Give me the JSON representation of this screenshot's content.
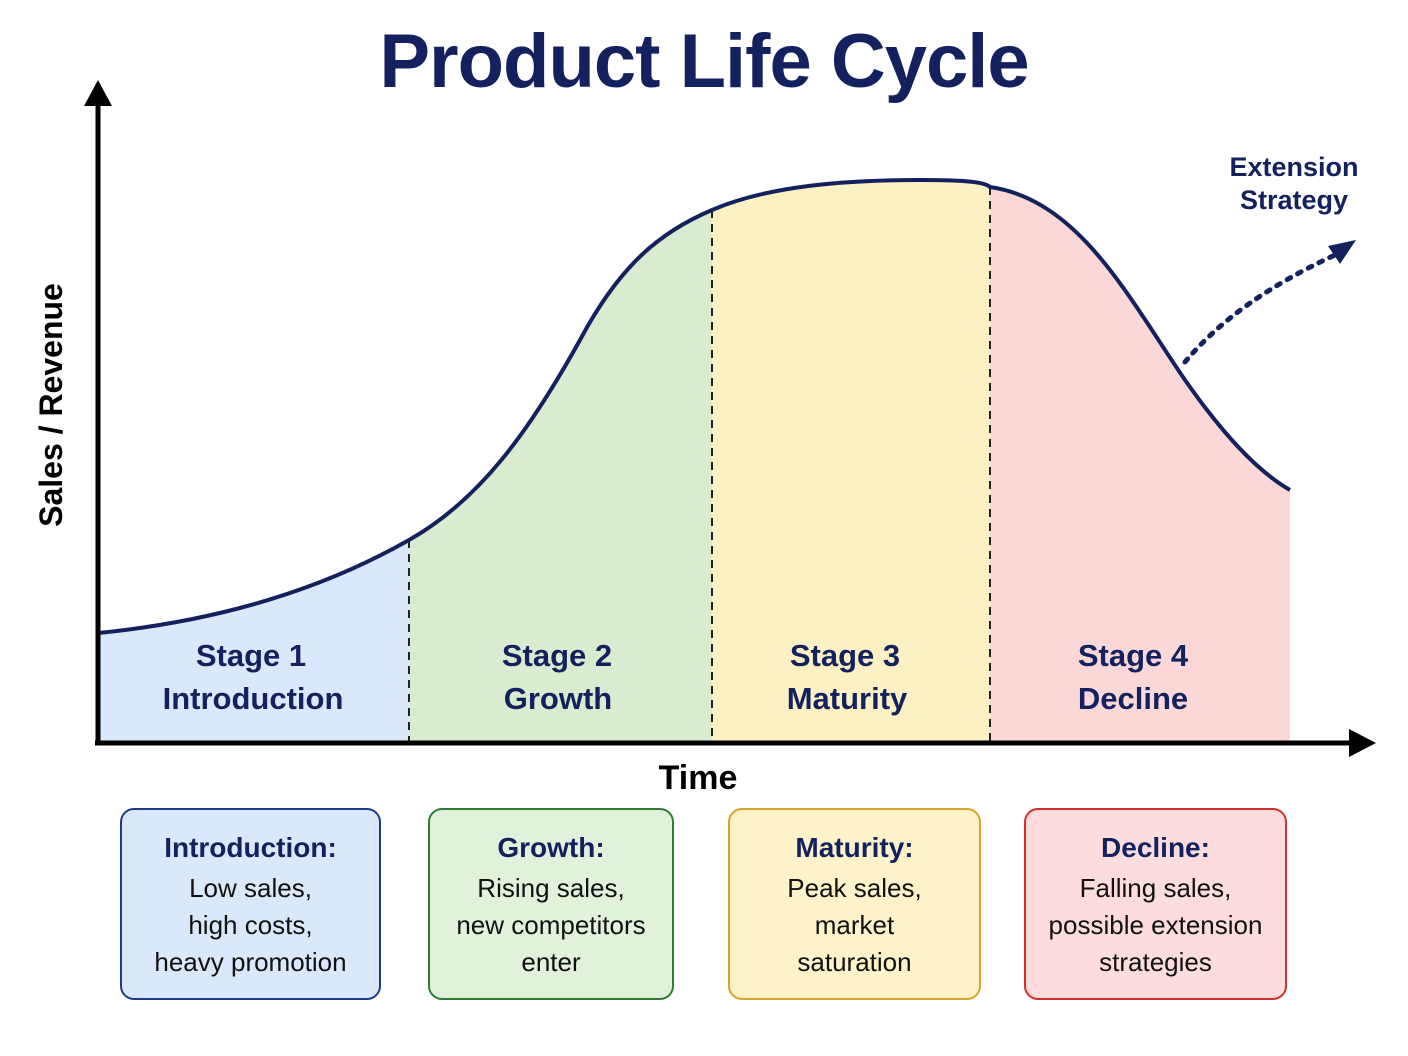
{
  "title": "Product Life Cycle",
  "y_axis_label": "Sales / Revenue",
  "x_axis_label": "Time",
  "stages": [
    {
      "line1": "Stage 1",
      "line2": "Introduction",
      "fill": "#dae8fb"
    },
    {
      "line1": "Stage 2",
      "line2": "Growth",
      "fill": "#d9ecd0"
    },
    {
      "line1": "Stage 3",
      "line2": "Maturity",
      "fill": "#fdf0c3"
    },
    {
      "line1": "Stage 4",
      "line2": "Decline",
      "fill": "#fcd7d7"
    }
  ],
  "extension": {
    "line1": "Extension",
    "line2": "Strategy"
  },
  "info_boxes": [
    {
      "title": "Introduction:",
      "lines": [
        "Low sales,",
        "high costs,",
        "heavy promotion"
      ],
      "border": "#1e3a8a",
      "fill": "#dae8fb"
    },
    {
      "title": "Growth:",
      "lines": [
        "Rising sales,",
        "new competitors",
        "enter"
      ],
      "border": "#2e7d32",
      "fill": "#e1f1da"
    },
    {
      "title": "Maturity:",
      "lines": [
        "Peak sales,",
        "market",
        "saturation"
      ],
      "border": "#d4a72c",
      "fill": "#fdf2c9"
    },
    {
      "title": "Decline:",
      "lines": [
        "Falling sales,",
        "possible extension",
        "strategies"
      ],
      "border": "#d32f2f",
      "fill": "#fcdcdc"
    }
  ],
  "colors": {
    "curve": "#13215e",
    "title": "#13215e",
    "axis": "#000000"
  }
}
